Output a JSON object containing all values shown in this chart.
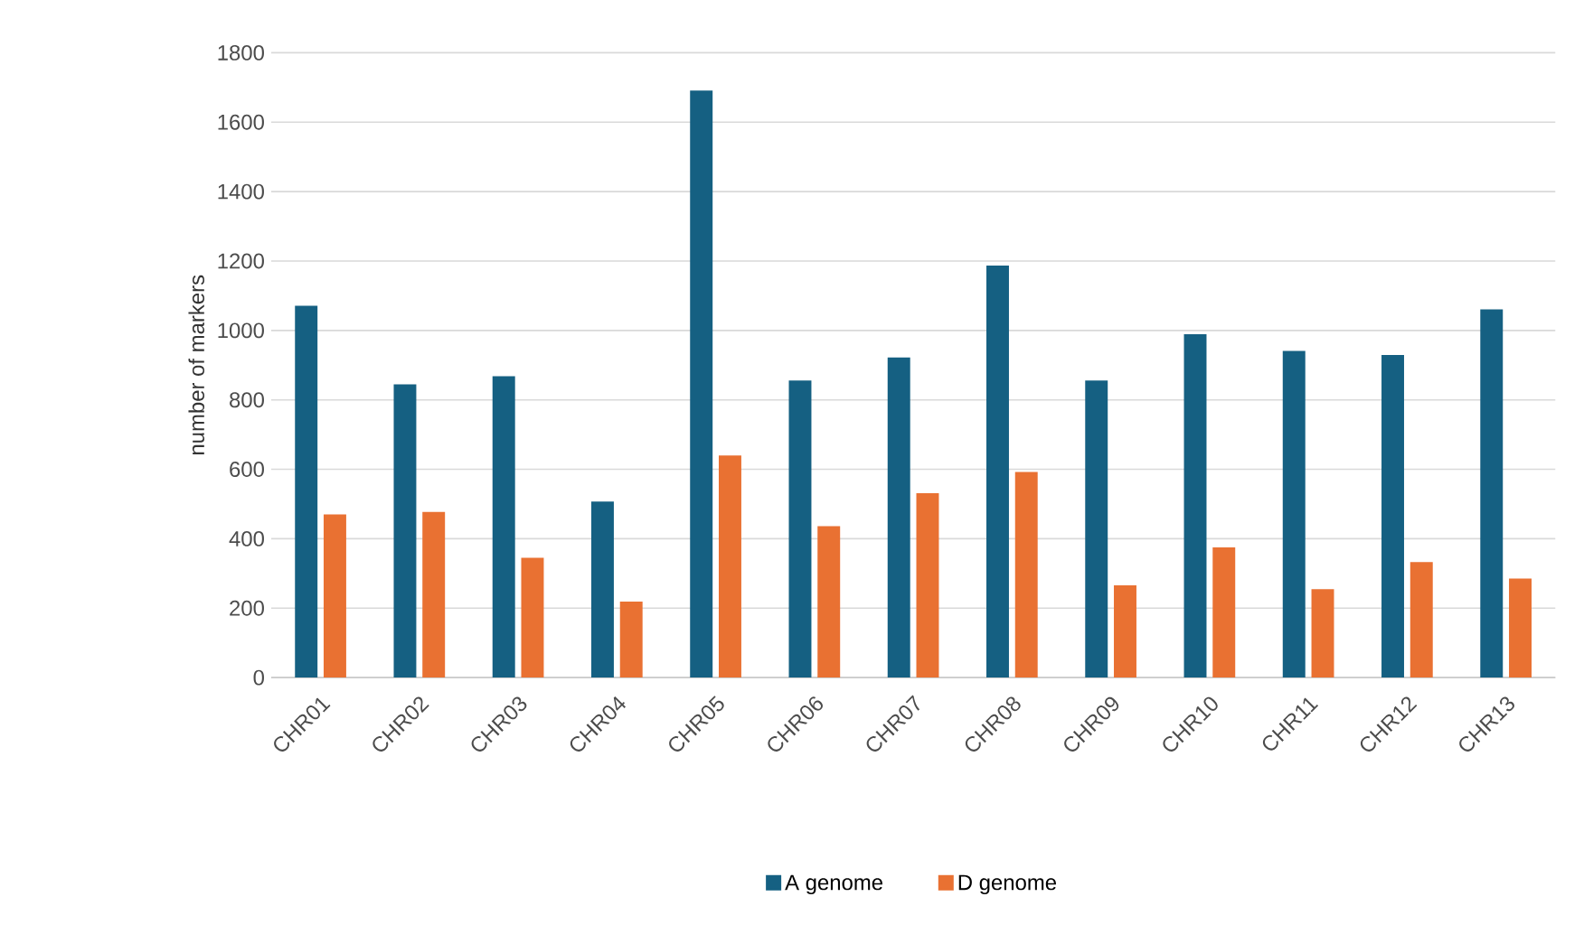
{
  "chart_data": {
    "type": "bar",
    "ylabel": "number of markers",
    "categories": [
      "CHR01",
      "CHR02",
      "CHR03",
      "CHR04",
      "CHR05",
      "CHR06",
      "CHR07",
      "CHR08",
      "CHR09",
      "CHR10",
      "CHR11",
      "CHR12",
      "CHR13"
    ],
    "series": [
      {
        "name": "A genome",
        "color": "#156082",
        "values": [
          1071,
          845,
          868,
          507,
          1691,
          856,
          922,
          1187,
          856,
          989,
          941,
          929,
          1061
        ]
      },
      {
        "name": "D genome",
        "color": "#e97132",
        "values": [
          470,
          477,
          345,
          219,
          640,
          436,
          531,
          592,
          266,
          375,
          255,
          333,
          285
        ]
      }
    ],
    "ylim": [
      0,
      1800
    ],
    "yticks": [
      0,
      200,
      400,
      600,
      800,
      1000,
      1200,
      1400,
      1600,
      1800
    ],
    "grid": "y",
    "legend": "bottom"
  }
}
